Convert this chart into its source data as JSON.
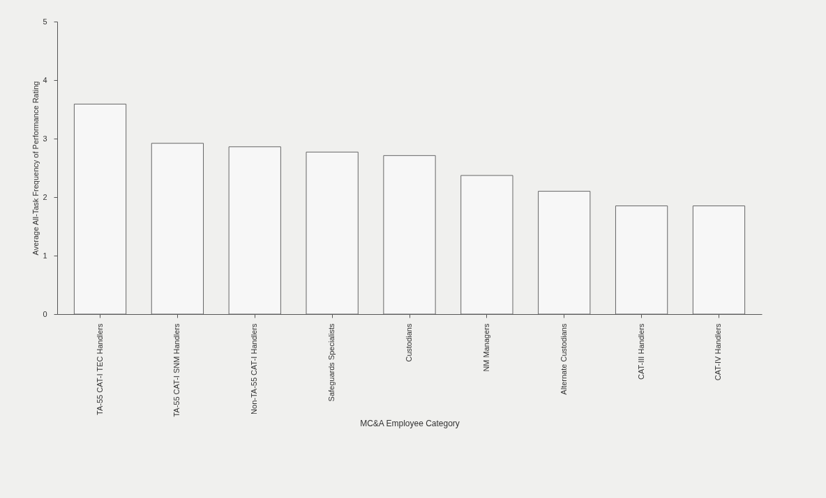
{
  "chart_data": {
    "type": "bar",
    "xlabel": "MC&A Employee Category",
    "ylabel": "Average All-Task Frequency of Performance Rating",
    "categories": [
      "TA-55 CAT-I TEC Handlers",
      "TA-55 CAT-I SNM Handlers",
      "Non-TA-55 CAT-I Handlers",
      "Safeguards Specialists",
      "Custodians",
      "NM Managers",
      "Alternate Custodians",
      "CAT-III Handlers",
      "CAT-IV Handlers"
    ],
    "values": [
      3.59,
      2.92,
      2.86,
      2.77,
      2.71,
      2.37,
      2.1,
      1.85,
      1.85
    ],
    "color": "#f7f7f7",
    "ylim": [
      0,
      5
    ],
    "yticks": [
      0,
      1,
      2,
      3,
      4,
      5
    ],
    "grid": false
  }
}
